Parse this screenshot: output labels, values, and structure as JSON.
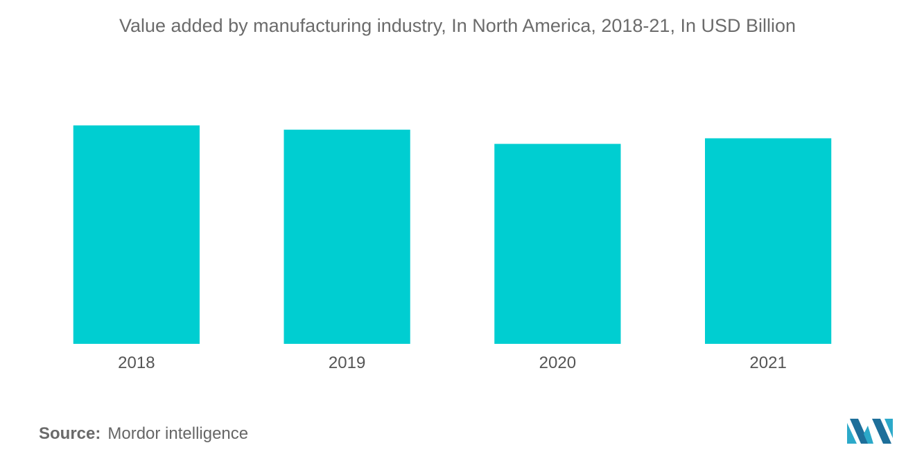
{
  "chart_data": {
    "type": "bar",
    "title": "Value added by manufacturing industry, In North America, 2018-21, In USD Billion",
    "categories": [
      "2018",
      "2019",
      "2020",
      "2021"
    ],
    "values": [
      2540,
      2490,
      2325,
      2390
    ],
    "ylim": [
      0,
      2950
    ],
    "xlabel": "",
    "ylabel": "",
    "grid": false,
    "legend": "none",
    "bar_color": "#00ced1"
  },
  "source": {
    "label": "Source:",
    "value": "Mordor intelligence"
  },
  "logo": {
    "icon": "mordor-intelligence-logo",
    "colors": [
      "#2ca9c9",
      "#1e6f9a"
    ]
  }
}
